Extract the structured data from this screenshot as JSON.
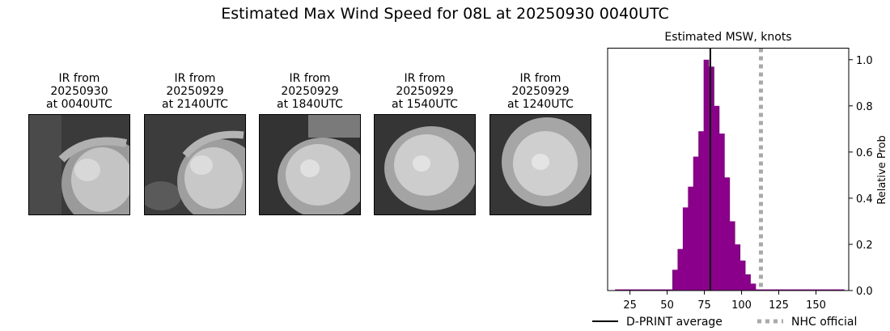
{
  "title": "Estimated Max Wind Speed for 08L at 20250930 0040UTC",
  "ir_panels": [
    {
      "line1": "IR from",
      "line2": "20250930",
      "line3": "at 0040UTC"
    },
    {
      "line1": "IR from",
      "line2": "20250929",
      "line3": "at 2140UTC"
    },
    {
      "line1": "IR from",
      "line2": "20250929",
      "line3": "at 1840UTC"
    },
    {
      "line1": "IR from",
      "line2": "20250929",
      "line3": "at 1540UTC"
    },
    {
      "line1": "IR from",
      "line2": "20250929",
      "line3": "at 1240UTC"
    }
  ],
  "colors": {
    "bars": "#8b008b",
    "dprint": "#000000",
    "nhc": "#a9a9a9"
  },
  "chart_data": {
    "type": "bar",
    "title": "Estimated MSW, knots",
    "xlabel": "",
    "ylabel": "Relative Prob",
    "xlim": [
      10,
      172
    ],
    "ylim": [
      0,
      1.05
    ],
    "xticks": [
      25,
      50,
      75,
      100,
      125,
      150
    ],
    "yticks": [
      0.0,
      0.2,
      0.4,
      0.6,
      0.8,
      1.0
    ],
    "ytick_labels": [
      "0.0",
      "0.2",
      "0.4",
      "0.6",
      "0.8",
      "1.0"
    ],
    "bin_width": 3.5,
    "bins": [
      {
        "x": 15,
        "value": 0.005
      },
      {
        "x": 18.5,
        "value": 0.005
      },
      {
        "x": 22,
        "value": 0.005
      },
      {
        "x": 25.5,
        "value": 0.005
      },
      {
        "x": 29,
        "value": 0.005
      },
      {
        "x": 32.5,
        "value": 0.005
      },
      {
        "x": 36,
        "value": 0.005
      },
      {
        "x": 39.5,
        "value": 0.005
      },
      {
        "x": 43,
        "value": 0.005
      },
      {
        "x": 46.5,
        "value": 0.005
      },
      {
        "x": 50,
        "value": 0.005
      },
      {
        "x": 53.5,
        "value": 0.09
      },
      {
        "x": 57,
        "value": 0.18
      },
      {
        "x": 60.5,
        "value": 0.36
      },
      {
        "x": 64,
        "value": 0.45
      },
      {
        "x": 67.5,
        "value": 0.58
      },
      {
        "x": 71,
        "value": 0.69
      },
      {
        "x": 74.5,
        "value": 1.0
      },
      {
        "x": 78,
        "value": 0.97
      },
      {
        "x": 81.5,
        "value": 0.8
      },
      {
        "x": 85,
        "value": 0.68
      },
      {
        "x": 88.5,
        "value": 0.49
      },
      {
        "x": 92,
        "value": 0.3
      },
      {
        "x": 95.5,
        "value": 0.2
      },
      {
        "x": 99,
        "value": 0.13
      },
      {
        "x": 102.5,
        "value": 0.07
      },
      {
        "x": 106,
        "value": 0.03
      },
      {
        "x": 109.5,
        "value": 0.005
      },
      {
        "x": 113,
        "value": 0.005
      },
      {
        "x": 116.5,
        "value": 0.005
      },
      {
        "x": 120,
        "value": 0.005
      },
      {
        "x": 123.5,
        "value": 0.005
      },
      {
        "x": 127,
        "value": 0.005
      },
      {
        "x": 130.5,
        "value": 0.005
      },
      {
        "x": 134,
        "value": 0.005
      },
      {
        "x": 137.5,
        "value": 0.005
      },
      {
        "x": 141,
        "value": 0.005
      },
      {
        "x": 144.5,
        "value": 0.005
      },
      {
        "x": 148,
        "value": 0.005
      },
      {
        "x": 151.5,
        "value": 0.005
      },
      {
        "x": 155,
        "value": 0.005
      },
      {
        "x": 158.5,
        "value": 0.005
      },
      {
        "x": 162,
        "value": 0.005
      },
      {
        "x": 165.5,
        "value": 0.005
      }
    ],
    "dprint_average": 79,
    "nhc_official": 113,
    "legend": [
      {
        "label": "D-PRINT average",
        "style": "solid"
      },
      {
        "label": "NHC official",
        "style": "dotted"
      }
    ],
    "legend_position": "bottom"
  }
}
